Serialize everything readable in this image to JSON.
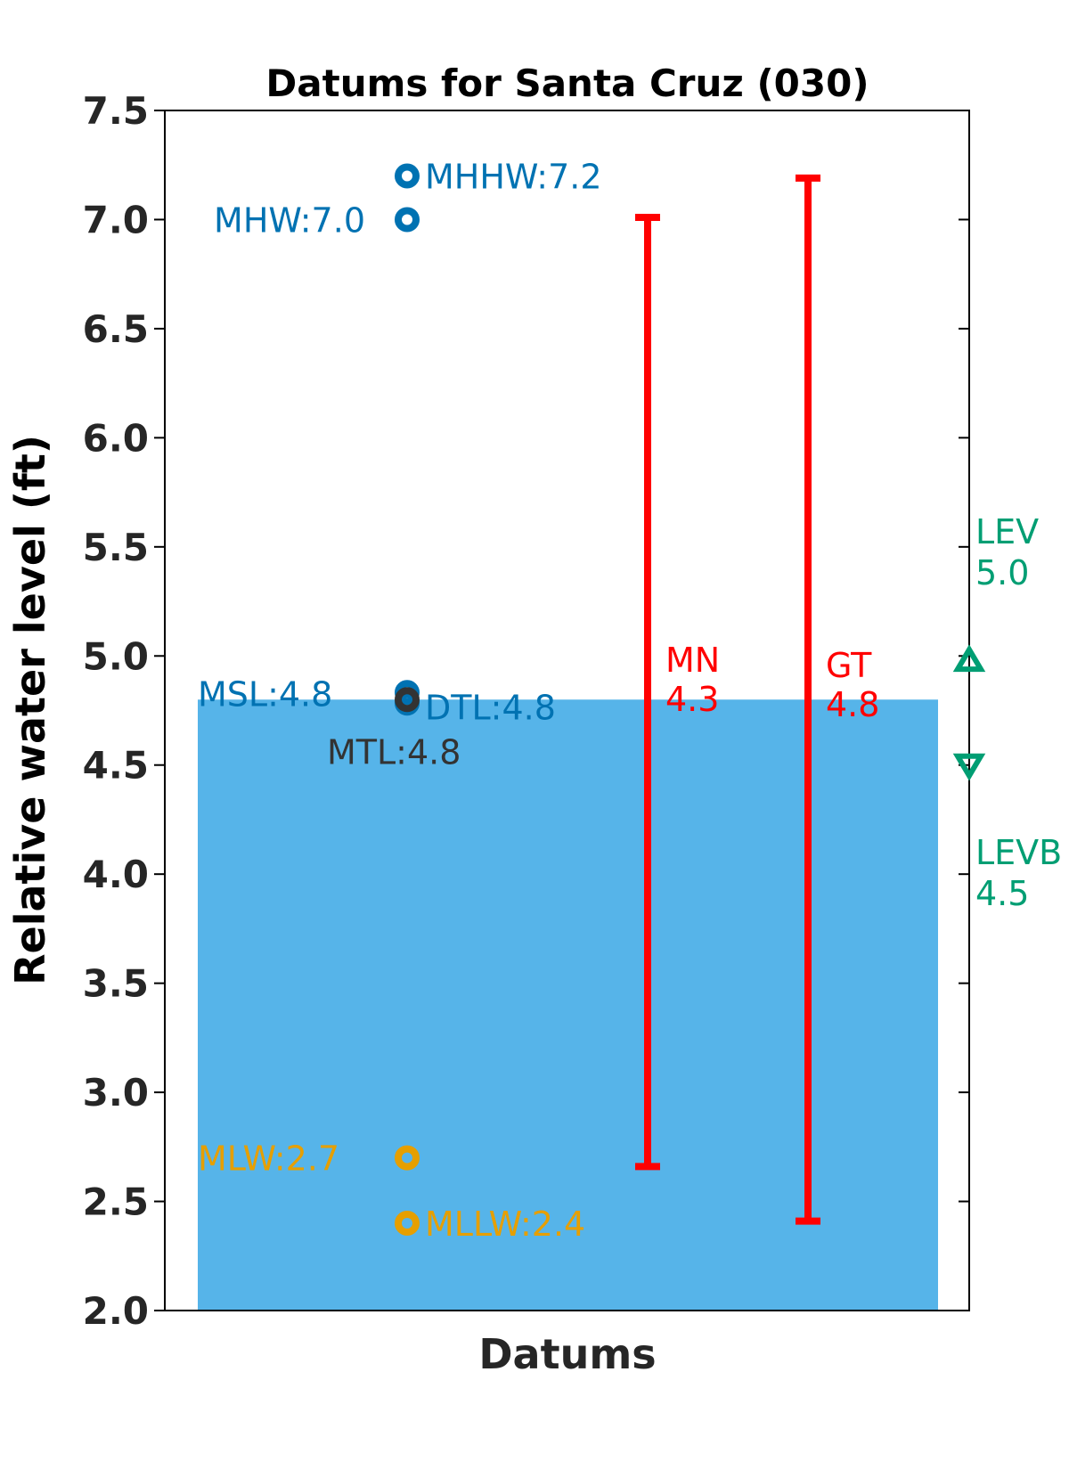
{
  "chart_data": {
    "type": "scatter",
    "title": "Datums for Santa Cruz (030)",
    "xlabel": "Datums",
    "ylabel": "Relative water level (ft)",
    "ylim": [
      2.0,
      7.5
    ],
    "yticks": [
      "2.0",
      "2.5",
      "3.0",
      "3.5",
      "4.0",
      "4.5",
      "5.0",
      "5.5",
      "6.0",
      "6.5",
      "7.0",
      "7.5"
    ],
    "grid": false,
    "background_bar": {
      "value": 4.8,
      "color": "#56B4E9"
    },
    "points": [
      {
        "name": "MHHW",
        "value": 7.2,
        "label": "MHHW:7.2",
        "color": "#0072B2"
      },
      {
        "name": "MHW",
        "value": 7.0,
        "label": "MHW:7.0",
        "color": "#0072B2"
      },
      {
        "name": "MSL",
        "value": 4.8,
        "label": "MSL:4.8",
        "color": "#0072B2"
      },
      {
        "name": "DTL",
        "value": 4.8,
        "label": "DTL:4.8",
        "color": "#0072B2"
      },
      {
        "name": "MTL",
        "value": 4.8,
        "label": "MTL:4.8",
        "color": "#333333"
      },
      {
        "name": "MLW",
        "value": 2.7,
        "label": "MLW:2.7",
        "color": "#E69F00"
      },
      {
        "name": "MLLW",
        "value": 2.4,
        "label": "MLLW:2.4",
        "color": "#E69F00"
      }
    ],
    "ranges": [
      {
        "name": "MN",
        "value_text": "4.3",
        "low": 2.66,
        "high": 7.01,
        "color": "#FF0000"
      },
      {
        "name": "GT",
        "value_text": "4.8",
        "low": 2.41,
        "high": 7.19,
        "color": "#FF0000"
      }
    ],
    "extremes": [
      {
        "name": "LEV",
        "value_text": "5.0",
        "value": 4.98,
        "marker": "triangle-up",
        "color": "#009E73"
      },
      {
        "name": "LEVB",
        "value_text": "4.5",
        "value": 4.5,
        "marker": "triangle-down",
        "color": "#009E73"
      }
    ]
  }
}
